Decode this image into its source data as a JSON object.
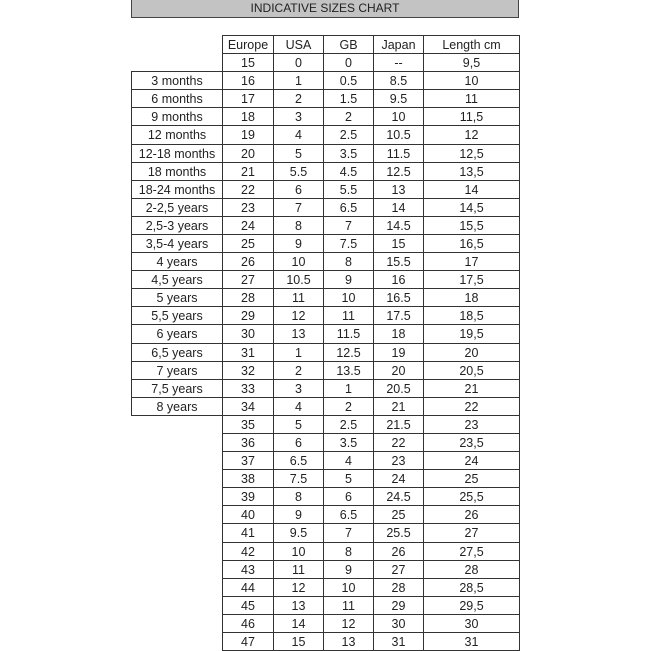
{
  "title": "INDICATIVE SIZES CHART",
  "columns": [
    "Europe",
    "USA",
    "GB",
    "Japan",
    "Length cm"
  ],
  "rows": [
    {
      "age": "",
      "values": [
        "15",
        "0",
        "0",
        "--",
        "9,5"
      ]
    },
    {
      "age": "3 months",
      "values": [
        "16",
        "1",
        "0.5",
        "8.5",
        "10"
      ]
    },
    {
      "age": "6 months",
      "values": [
        "17",
        "2",
        "1.5",
        "9.5",
        "11"
      ]
    },
    {
      "age": "9 months",
      "values": [
        "18",
        "3",
        "2",
        "10",
        "11,5"
      ]
    },
    {
      "age": "12 months",
      "values": [
        "19",
        "4",
        "2.5",
        "10.5",
        "12"
      ]
    },
    {
      "age": "12-18 months",
      "values": [
        "20",
        "5",
        "3.5",
        "11.5",
        "12,5"
      ]
    },
    {
      "age": "18 months",
      "values": [
        "21",
        "5.5",
        "4.5",
        "12.5",
        "13,5"
      ]
    },
    {
      "age": "18-24 months",
      "values": [
        "22",
        "6",
        "5.5",
        "13",
        "14"
      ]
    },
    {
      "age": "2-2,5 years",
      "values": [
        "23",
        "7",
        "6.5",
        "14",
        "14,5"
      ]
    },
    {
      "age": "2,5-3 years",
      "values": [
        "24",
        "8",
        "7",
        "14.5",
        "15,5"
      ]
    },
    {
      "age": "3,5-4 years",
      "values": [
        "25",
        "9",
        "7.5",
        "15",
        "16,5"
      ]
    },
    {
      "age": "4 years",
      "values": [
        "26",
        "10",
        "8",
        "15.5",
        "17"
      ]
    },
    {
      "age": "4,5 years",
      "values": [
        "27",
        "10.5",
        "9",
        "16",
        "17,5"
      ]
    },
    {
      "age": "5 years",
      "values": [
        "28",
        "11",
        "10",
        "16.5",
        "18"
      ]
    },
    {
      "age": "5,5 years",
      "values": [
        "29",
        "12",
        "11",
        "17.5",
        "18,5"
      ]
    },
    {
      "age": "6 years",
      "values": [
        "30",
        "13",
        "11.5",
        "18",
        "19,5"
      ]
    },
    {
      "age": "6,5 years",
      "values": [
        "31",
        "1",
        "12.5",
        "19",
        "20"
      ]
    },
    {
      "age": "7 years",
      "values": [
        "32",
        "2",
        "13.5",
        "20",
        "20,5"
      ]
    },
    {
      "age": "7,5 years",
      "values": [
        "33",
        "3",
        "1",
        "20.5",
        "21"
      ]
    },
    {
      "age": "8 years",
      "values": [
        "34",
        "4",
        "2",
        "21",
        "22"
      ]
    },
    {
      "age": "",
      "values": [
        "35",
        "5",
        "2.5",
        "21.5",
        "23"
      ]
    },
    {
      "age": "",
      "values": [
        "36",
        "6",
        "3.5",
        "22",
        "23,5"
      ]
    },
    {
      "age": "",
      "values": [
        "37",
        "6.5",
        "4",
        "23",
        "24"
      ]
    },
    {
      "age": "",
      "values": [
        "38",
        "7.5",
        "5",
        "24",
        "25"
      ]
    },
    {
      "age": "",
      "values": [
        "39",
        "8",
        "6",
        "24.5",
        "25,5"
      ]
    },
    {
      "age": "",
      "values": [
        "40",
        "9",
        "6.5",
        "25",
        "26"
      ]
    },
    {
      "age": "",
      "values": [
        "41",
        "9.5",
        "7",
        "25.5",
        "27"
      ]
    },
    {
      "age": "",
      "values": [
        "42",
        "10",
        "8",
        "26",
        "27,5"
      ]
    },
    {
      "age": "",
      "values": [
        "43",
        "11",
        "9",
        "27",
        "28"
      ]
    },
    {
      "age": "",
      "values": [
        "44",
        "12",
        "10",
        "28",
        "28,5"
      ]
    },
    {
      "age": "",
      "values": [
        "45",
        "13",
        "11",
        "29",
        "29,5"
      ]
    },
    {
      "age": "",
      "values": [
        "46",
        "14",
        "12",
        "30",
        "30"
      ]
    },
    {
      "age": "",
      "values": [
        "47",
        "15",
        "13",
        "31",
        "31"
      ]
    }
  ]
}
